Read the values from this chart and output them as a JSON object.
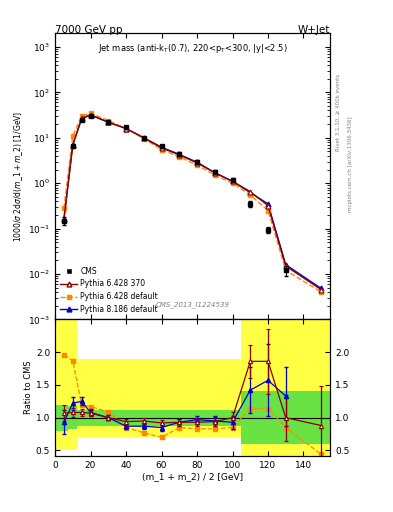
{
  "title_left": "7000 GeV pp",
  "title_right": "W+Jet",
  "annotation": "Jet mass (anti-k$_T$(0.7), 220<p$_T$<300, |y|<2.5)",
  "watermark": "CMS_2013_I1224539",
  "ylabel_main": "1000/σ 2dσ/d(m_1 + m_2) [1/GeV]",
  "ylabel_ratio": "Ratio to CMS",
  "xlabel": "(m_1 + m_2) / 2 [GeV]",
  "right_label_top": "Rivet 3.1.10, ≥ 400k events",
  "right_label_mid": "mcplots.cern.ch [arXiv:1306.34 36]",
  "x_centers": [
    5,
    10,
    15,
    20,
    30,
    40,
    50,
    60,
    70,
    80,
    90,
    100,
    110,
    120,
    130,
    150
  ],
  "cms_y": [
    0.15,
    6.5,
    25,
    30,
    22,
    17,
    10,
    6.5,
    4.5,
    3.0,
    1.8,
    1.2,
    0.35,
    0.095,
    0.012,
    null
  ],
  "cms_yerr": [
    0.03,
    0.5,
    1.5,
    1.5,
    1.2,
    1.0,
    0.6,
    0.4,
    0.3,
    0.2,
    0.15,
    0.12,
    0.05,
    0.015,
    0.003,
    null
  ],
  "p6_370_y": [
    0.16,
    7.0,
    27,
    32,
    22,
    16,
    10,
    6.0,
    4.2,
    2.8,
    1.7,
    1.1,
    0.65,
    0.32,
    0.015,
    0.0045
  ],
  "p6_default_y": [
    0.28,
    11,
    30,
    35,
    24,
    16,
    9.5,
    5.5,
    3.8,
    2.5,
    1.5,
    1.0,
    0.55,
    0.25,
    0.012,
    0.004
  ],
  "p8_default_y": [
    0.16,
    7.0,
    26,
    32,
    22,
    16,
    10,
    6.2,
    4.3,
    2.9,
    1.7,
    1.1,
    0.62,
    0.35,
    0.016,
    0.0048
  ],
  "ratio_x": [
    5,
    10,
    15,
    20,
    30,
    40,
    50,
    60,
    70,
    80,
    90,
    100,
    110,
    120,
    130,
    150
  ],
  "p6_370_ratio": [
    1.07,
    1.08,
    1.08,
    1.07,
    1.0,
    0.94,
    0.95,
    0.92,
    0.93,
    0.93,
    0.94,
    1.0,
    1.86,
    1.86,
    1.0,
    0.88
  ],
  "p6_370_ratio_err": [
    0.12,
    0.07,
    0.05,
    0.04,
    0.04,
    0.04,
    0.04,
    0.04,
    0.05,
    0.06,
    0.07,
    0.09,
    0.25,
    0.5,
    0.35,
    0.6
  ],
  "p6_default_ratio": [
    1.95,
    1.87,
    1.2,
    1.17,
    1.09,
    0.85,
    0.77,
    0.7,
    0.85,
    0.83,
    0.83,
    0.85,
    1.14,
    1.14,
    0.85,
    0.44
  ],
  "p8_default_ratio": [
    0.93,
    1.22,
    1.25,
    1.08,
    1.0,
    0.87,
    0.87,
    0.85,
    0.93,
    0.97,
    0.95,
    0.93,
    1.42,
    1.57,
    1.33,
    null
  ],
  "p8_default_ratio_err": [
    0.18,
    0.1,
    0.06,
    0.05,
    0.04,
    0.04,
    0.04,
    0.05,
    0.05,
    0.06,
    0.07,
    0.1,
    0.35,
    0.55,
    0.45,
    null
  ],
  "band_x_edges": [
    0,
    7.5,
    12.5,
    17.5,
    25,
    35,
    45,
    55,
    65,
    75,
    85,
    95,
    105,
    115,
    140,
    160
  ],
  "band_green_lo": [
    0.8,
    0.82,
    0.88,
    0.88,
    0.88,
    0.88,
    0.88,
    0.88,
    0.88,
    0.88,
    0.88,
    0.88,
    0.6,
    0.6,
    0.6,
    0.6
  ],
  "band_green_hi": [
    1.2,
    1.18,
    1.12,
    1.12,
    1.12,
    1.12,
    1.12,
    1.12,
    1.12,
    1.12,
    1.12,
    1.12,
    1.4,
    1.4,
    1.4,
    1.4
  ],
  "band_yellow_lo": [
    0.5,
    0.5,
    0.7,
    0.7,
    0.7,
    0.7,
    0.7,
    0.7,
    0.7,
    0.7,
    0.7,
    0.7,
    0.4,
    0.4,
    0.4,
    0.4
  ],
  "band_yellow_hi": [
    2.5,
    2.5,
    1.9,
    1.9,
    1.9,
    1.9,
    1.9,
    1.9,
    1.9,
    1.9,
    1.9,
    1.9,
    2.5,
    2.5,
    2.5,
    2.5
  ],
  "cms_color": "#000000",
  "p6_370_color": "#880000",
  "p6_default_color": "#ff8800",
  "p8_default_color": "#0000cc",
  "xlim": [
    0,
    155
  ],
  "ylim_main": [
    0.001,
    2000
  ],
  "ylim_ratio": [
    0.42,
    2.5
  ],
  "yticks_ratio": [
    0.5,
    1.0,
    1.5,
    2.0
  ]
}
